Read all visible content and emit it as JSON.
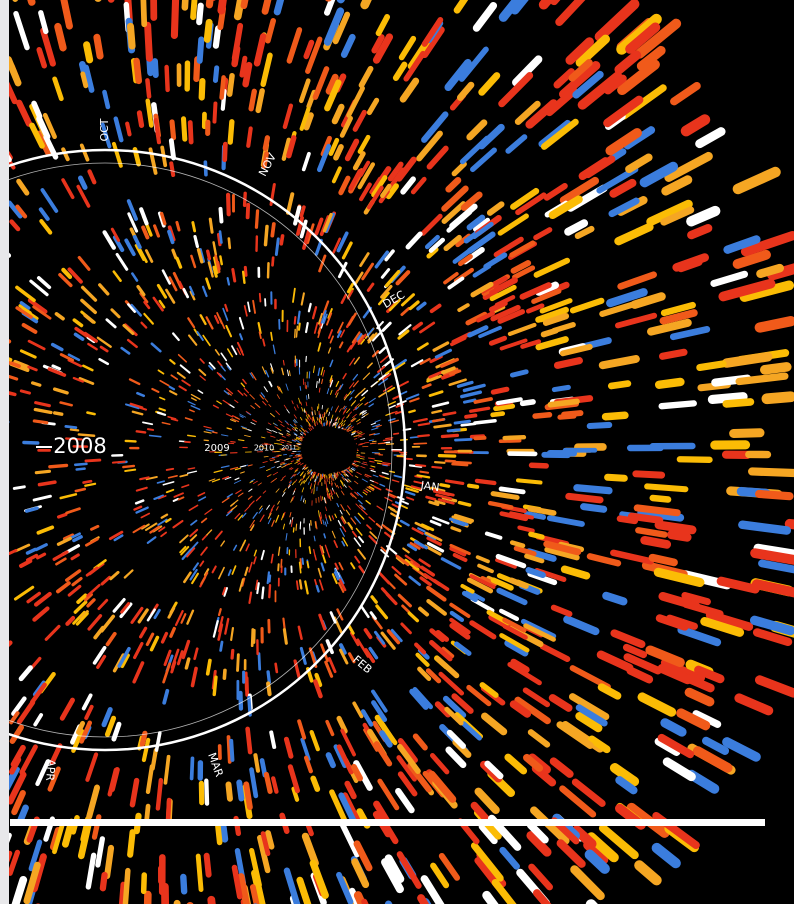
{
  "years": [
    "2008",
    "2009",
    "2010",
    "2011"
  ],
  "months": [
    "OCT",
    "NOV",
    "DEC",
    "JAN",
    "FEB",
    "MAR",
    "APR"
  ]
}
